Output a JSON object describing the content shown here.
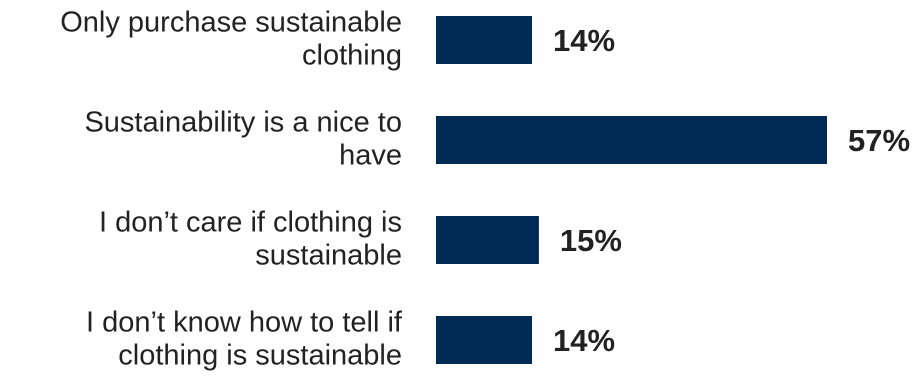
{
  "chart_data": {
    "type": "bar",
    "orientation": "horizontal",
    "categories": [
      [
        "Only purchase sustainable",
        "clothing"
      ],
      [
        "Sustainability is a nice to",
        "have"
      ],
      [
        "I don’t care if clothing is",
        "sustainable"
      ],
      [
        "I don’t know how to tell if",
        "clothing is sustainable"
      ]
    ],
    "values": [
      14,
      57,
      15,
      14
    ],
    "value_labels": [
      "14%",
      "57%",
      "15%",
      "14%"
    ],
    "unit": "%",
    "title": "",
    "xlabel": "",
    "ylabel": "",
    "xlim": [
      0,
      57
    ],
    "grid": false,
    "legend": "none",
    "bar_color": "#002B55"
  }
}
